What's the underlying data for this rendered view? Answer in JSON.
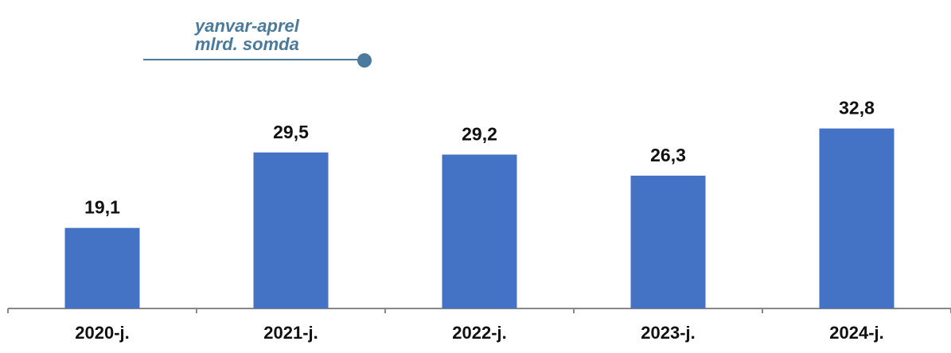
{
  "chart_data": {
    "type": "bar",
    "subtitle": [
      "yanvar-aprel",
      "mlrd. somda"
    ],
    "categories": [
      "2020-j.",
      "2021-j.",
      "2022-j.",
      "2023-j.",
      "2024-j."
    ],
    "values": [
      19.1,
      29.5,
      29.2,
      26.3,
      32.8
    ],
    "value_labels": [
      "19,1",
      "29,5",
      "29,2",
      "26,3",
      "32,8"
    ],
    "color": "#4472c4",
    "ylim": [
      8,
      37.4
    ]
  }
}
